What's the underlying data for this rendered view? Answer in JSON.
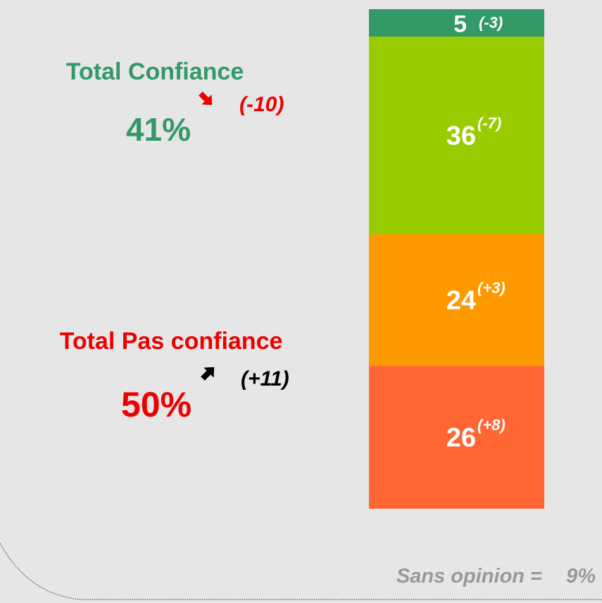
{
  "chart_data": {
    "type": "bar",
    "stacked": true,
    "values": [
      26,
      24,
      36,
      5
    ],
    "colors": [
      "#ff6633",
      "#ff9900",
      "#99cc00",
      "#339966"
    ],
    "changes": [
      8,
      3,
      -7,
      -3
    ],
    "change_labels": [
      "(+8)",
      "(+3)",
      "(-7)",
      "(-3)"
    ],
    "totals": [
      {
        "name": "Total Confiance",
        "value": 41,
        "value_label": "41%",
        "change": -10,
        "change_label": "(-10)",
        "color": "#339966",
        "change_color": "#ee0000"
      },
      {
        "name": "Total Pas confiance",
        "value": 50,
        "value_label": "50%",
        "change": 11,
        "change_label": "(+11)",
        "color": "#ee0000",
        "change_color": "#000000"
      }
    ],
    "note": {
      "label": "Sans opinion =",
      "value": 9,
      "value_label": "9%"
    }
  }
}
